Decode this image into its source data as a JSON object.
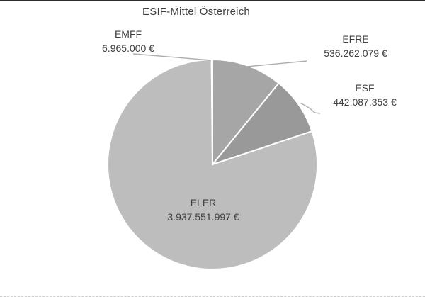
{
  "title": "ESIF-Mittel Österreich",
  "chart_data": {
    "type": "pie",
    "title": "ESIF-Mittel Österreich",
    "unit": "€",
    "start_angle_deg": 0,
    "direction": "clockwise",
    "legend_position": "none",
    "segments": [
      {
        "label": "EFRE",
        "value": 536262079,
        "display_value": "536.262.079 €",
        "color": "#a6a6a6",
        "label_position": "outside-top-right"
      },
      {
        "label": "ESF",
        "value": 442087353,
        "display_value": "442.087.353 €",
        "color": "#999999",
        "label_position": "outside-right"
      },
      {
        "label": "ELER",
        "value": 3937551997,
        "display_value": "3.937.551.997 €",
        "color": "#bdbdbd",
        "label_position": "inside"
      },
      {
        "label": "EMFF",
        "value": 6965000,
        "display_value": "6.965.000 €",
        "color": "#c9c9c9",
        "label_position": "outside-top-left"
      }
    ]
  }
}
